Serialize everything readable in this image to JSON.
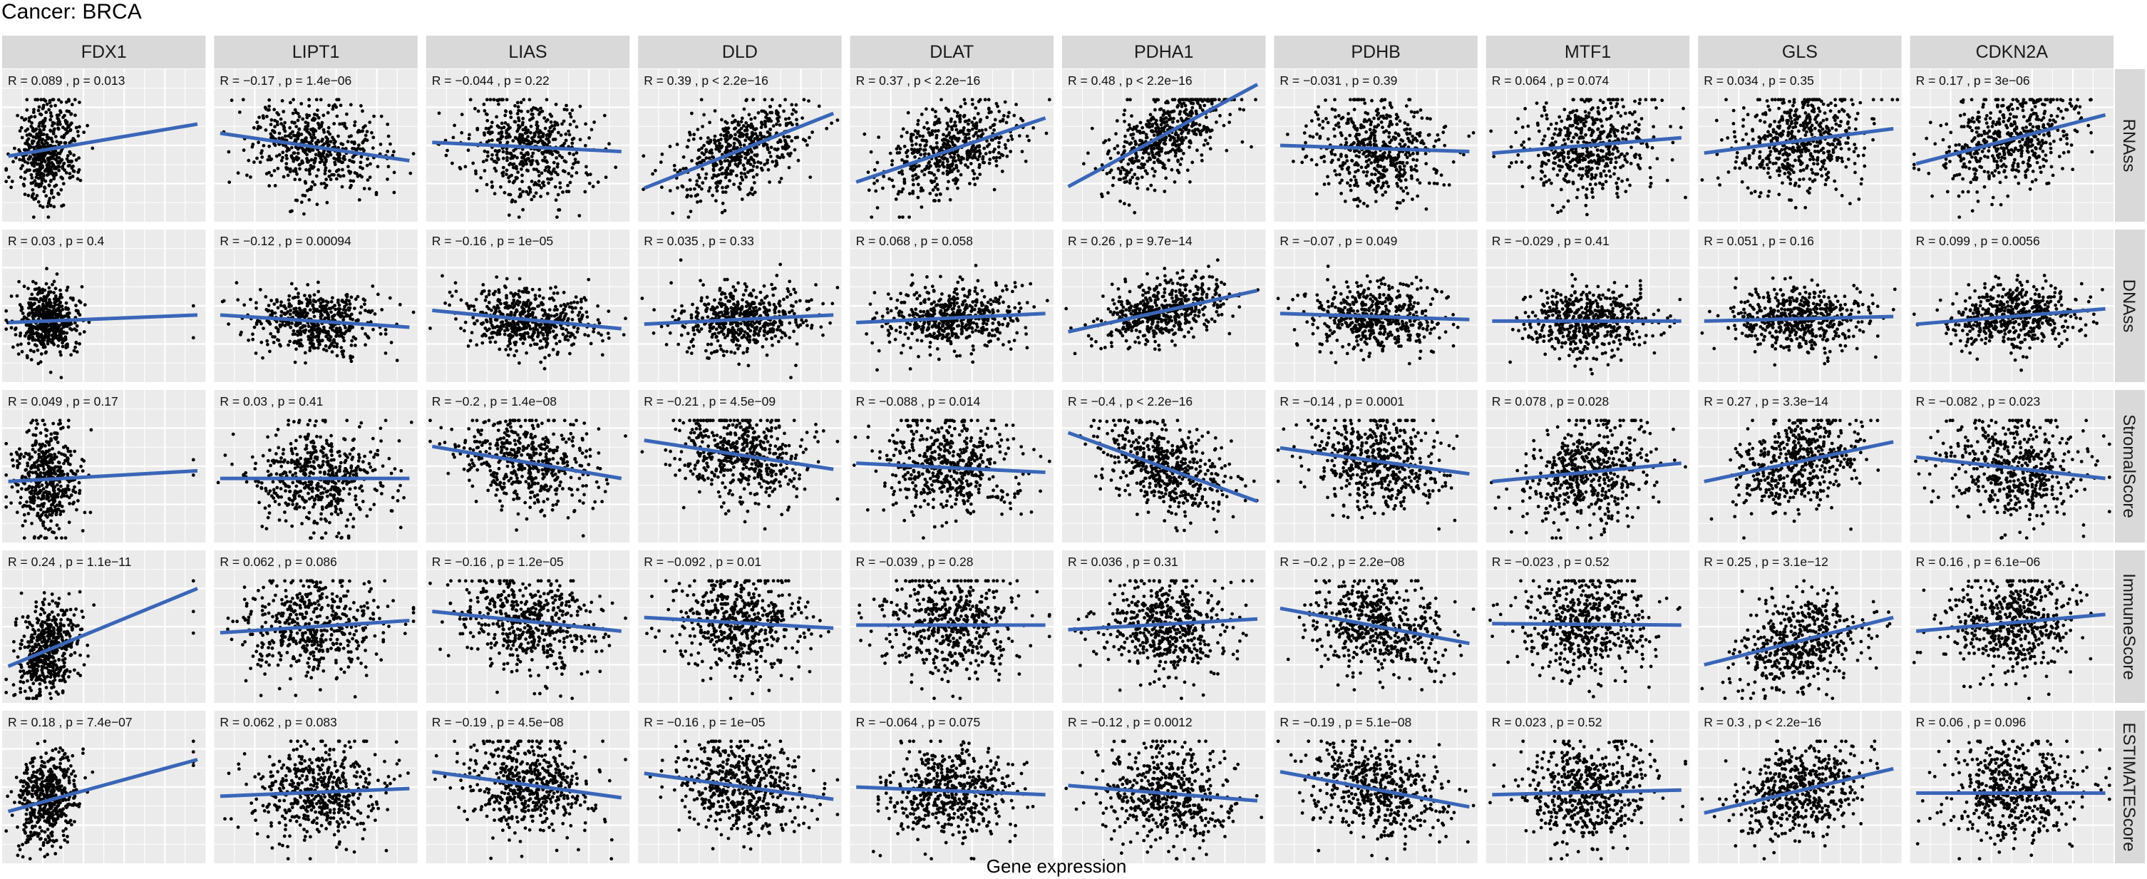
{
  "page": {
    "title": "Cancer: BRCA"
  },
  "chart_data": {
    "type": "scatter",
    "facet": "grid",
    "title": "Cancer: BRCA",
    "xlabel": "Gene expression",
    "ylabel": "",
    "columns": [
      "FDX1",
      "LIPT1",
      "LIAS",
      "DLD",
      "DLAT",
      "PDHA1",
      "PDHB",
      "MTF1",
      "GLS",
      "CDKN2A"
    ],
    "rows": [
      "RNAss",
      "DNAss",
      "StromalScore",
      "ImmuneScore",
      "ESTIMATEScore"
    ],
    "grid": true,
    "panel_background": "#ebebeb",
    "strip_background": "#d9d9d9",
    "point_color": "#000000",
    "fit_line_color": "#3a66b8",
    "annotations": [
      [
        "R = 0.089 , p = 0.013",
        "R = −0.17 , p = 1.4e−06",
        "R = −0.044 , p = 0.22",
        "R = 0.39 , p < 2.2e−16",
        "R = 0.37 , p < 2.2e−16",
        "R = 0.48 , p < 2.2e−16",
        "R = −0.031 , p = 0.39",
        "R = 0.064 , p = 0.074",
        "R = 0.034 , p = 0.35",
        "R = 0.17 , p = 3e−06"
      ],
      [
        "R = 0.03 , p = 0.4",
        "R = −0.12 , p = 0.00094",
        "R = −0.16 , p = 1e−05",
        "R = 0.035 , p = 0.33",
        "R = 0.068 , p = 0.058",
        "R = 0.26 , p = 9.7e−14",
        "R = −0.07 , p = 0.049",
        "R = −0.029 , p = 0.41",
        "R = 0.051 , p = 0.16",
        "R = 0.099 , p = 0.0056"
      ],
      [
        "R = 0.049 , p = 0.17",
        "R = 0.03 , p = 0.41",
        "R = −0.2 , p = 1.4e−08",
        "R = −0.21 , p = 4.5e−09",
        "R = −0.088 , p = 0.014",
        "R = −0.4 , p < 2.2e−16",
        "R = −0.14 , p = 0.0001",
        "R = 0.078 , p = 0.028",
        "R = 0.27 , p = 3.3e−14",
        "R = −0.082 , p = 0.023"
      ],
      [
        "R = 0.24 , p = 1.1e−11",
        "R = 0.062 , p = 0.086",
        "R = −0.16 , p = 1.2e−05",
        "R = −0.092 , p = 0.01",
        "R = −0.039 , p = 0.28",
        "R = 0.036 , p = 0.31",
        "R = −0.2 , p = 2.2e−08",
        "R = −0.023 , p = 0.52",
        "R = 0.25 , p = 3.1e−12",
        "R = 0.16 , p = 6.1e−06"
      ],
      [
        "R = 0.18 , p = 7.4e−07",
        "R = 0.062 , p = 0.083",
        "R = −0.19 , p = 4.5e−08",
        "R = −0.16 , p = 1e−05",
        "R = −0.064 , p = 0.075",
        "R = −0.12 , p = 0.0012",
        "R = −0.19 , p = 5.1e−08",
        "R = 0.023 , p = 0.52",
        "R = 0.3 , p < 2.2e−16",
        "R = 0.06 , p = 0.096"
      ]
    ],
    "correlation_r": [
      [
        0.089,
        -0.17,
        -0.044,
        0.39,
        0.37,
        0.48,
        -0.031,
        0.064,
        0.034,
        0.17
      ],
      [
        0.03,
        -0.12,
        -0.16,
        0.035,
        0.068,
        0.26,
        -0.07,
        -0.029,
        0.051,
        0.099
      ],
      [
        0.049,
        0.03,
        -0.2,
        -0.21,
        -0.088,
        -0.4,
        -0.14,
        0.078,
        0.27,
        -0.082
      ],
      [
        0.24,
        0.062,
        -0.16,
        -0.092,
        -0.039,
        0.036,
        -0.2,
        -0.023,
        0.25,
        0.16
      ],
      [
        0.18,
        0.062,
        -0.19,
        -0.16,
        -0.064,
        -0.12,
        -0.19,
        0.023,
        0.3,
        0.06
      ]
    ],
    "fit_lines": [
      [
        {
          "y0": 0.43,
          "y1": 0.64
        },
        {
          "y0": 0.58,
          "y1": 0.4
        },
        {
          "y0": 0.52,
          "y1": 0.46
        },
        {
          "y0": 0.22,
          "y1": 0.71
        },
        {
          "y0": 0.26,
          "y1": 0.68
        },
        {
          "y0": 0.23,
          "y1": 0.9
        },
        {
          "y0": 0.5,
          "y1": 0.46
        },
        {
          "y0": 0.45,
          "y1": 0.55
        },
        {
          "y0": 0.45,
          "y1": 0.61
        },
        {
          "y0": 0.38,
          "y1": 0.7
        }
      ],
      [
        {
          "y0": 0.39,
          "y1": 0.44
        },
        {
          "y0": 0.44,
          "y1": 0.36
        },
        {
          "y0": 0.47,
          "y1": 0.35
        },
        {
          "y0": 0.38,
          "y1": 0.44
        },
        {
          "y0": 0.39,
          "y1": 0.45
        },
        {
          "y0": 0.33,
          "y1": 0.6
        },
        {
          "y0": 0.45,
          "y1": 0.41
        },
        {
          "y0": 0.4,
          "y1": 0.4
        },
        {
          "y0": 0.4,
          "y1": 0.43
        },
        {
          "y0": 0.38,
          "y1": 0.48
        }
      ],
      [
        {
          "y0": 0.4,
          "y1": 0.47
        },
        {
          "y0": 0.42,
          "y1": 0.42
        },
        {
          "y0": 0.63,
          "y1": 0.42
        },
        {
          "y0": 0.67,
          "y1": 0.48
        },
        {
          "y0": 0.52,
          "y1": 0.46
        },
        {
          "y0": 0.72,
          "y1": 0.27
        },
        {
          "y0": 0.62,
          "y1": 0.45
        },
        {
          "y0": 0.4,
          "y1": 0.52
        },
        {
          "y0": 0.4,
          "y1": 0.66
        },
        {
          "y0": 0.56,
          "y1": 0.42
        }
      ],
      [
        {
          "y0": 0.24,
          "y1": 0.75
        },
        {
          "y0": 0.46,
          "y1": 0.54
        },
        {
          "y0": 0.6,
          "y1": 0.47
        },
        {
          "y0": 0.56,
          "y1": 0.49
        },
        {
          "y0": 0.51,
          "y1": 0.51
        },
        {
          "y0": 0.48,
          "y1": 0.55
        },
        {
          "y0": 0.62,
          "y1": 0.39
        },
        {
          "y0": 0.52,
          "y1": 0.51
        },
        {
          "y0": 0.25,
          "y1": 0.56
        },
        {
          "y0": 0.47,
          "y1": 0.58
        }
      ],
      [
        {
          "y0": 0.34,
          "y1": 0.68
        },
        {
          "y0": 0.44,
          "y1": 0.49
        },
        {
          "y0": 0.6,
          "y1": 0.43
        },
        {
          "y0": 0.59,
          "y1": 0.42
        },
        {
          "y0": 0.5,
          "y1": 0.45
        },
        {
          "y0": 0.51,
          "y1": 0.41
        },
        {
          "y0": 0.6,
          "y1": 0.37
        },
        {
          "y0": 0.45,
          "y1": 0.48
        },
        {
          "y0": 0.33,
          "y1": 0.62
        },
        {
          "y0": 0.46,
          "y1": 0.46
        }
      ]
    ]
  }
}
